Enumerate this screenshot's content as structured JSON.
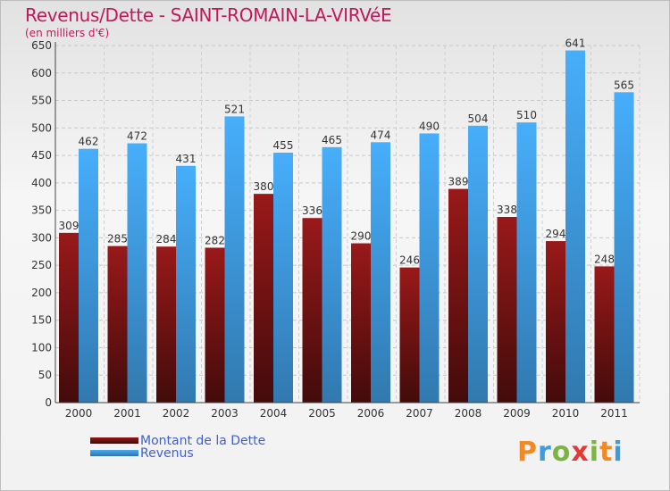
{
  "title": "Revenus/Dette - SAINT-ROMAIN-LA-VIRVéE",
  "subtitle": "(en milliers d'€)",
  "logo": [
    "P",
    "r",
    "o",
    "x",
    "i",
    "t",
    "i"
  ],
  "colors": {
    "dette": "#7a1414",
    "revenus": "#3f9be0",
    "title": "#c2185b",
    "legend_text": "#4060d0"
  },
  "chart_data": {
    "type": "bar",
    "categories": [
      "2000",
      "2001",
      "2002",
      "2003",
      "2004",
      "2005",
      "2006",
      "2007",
      "2008",
      "2009",
      "2010",
      "2011"
    ],
    "series": [
      {
        "name": "Montant de la Dette",
        "values": [
          309,
          285,
          284,
          282,
          380,
          336,
          290,
          246,
          389,
          338,
          294,
          248
        ]
      },
      {
        "name": "Revenus",
        "values": [
          462,
          472,
          431,
          521,
          455,
          465,
          474,
          490,
          504,
          510,
          641,
          565
        ]
      }
    ],
    "yticks": [
      0,
      50,
      100,
      150,
      200,
      250,
      300,
      350,
      400,
      450,
      500,
      550,
      600,
      650
    ],
    "ylim": [
      0,
      650
    ],
    "grid": true,
    "legend": "bottom-left"
  }
}
